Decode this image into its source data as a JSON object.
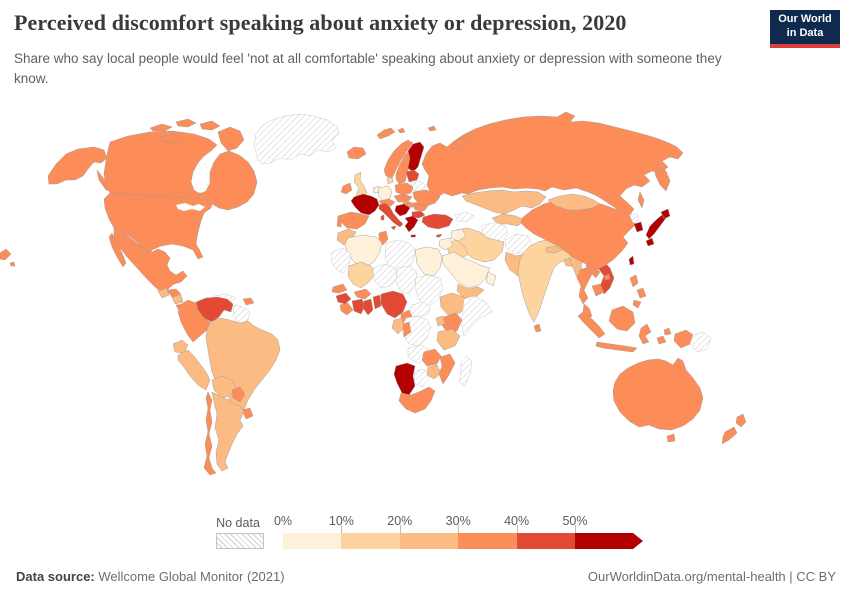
{
  "header": {
    "title": "Perceived discomfort speaking about anxiety or depression, 2020",
    "subtitle": "Share who say local people would feel 'not at all comfortable' speaking about anxiety or depression with someone they know.",
    "logo_line1": "Our World",
    "logo_line2": "in Data",
    "logo_colors": {
      "background": "#0e2a4e",
      "underline": "#dc3e3e"
    }
  },
  "legend": {
    "no_data_label": "No data",
    "ticks": [
      "0%",
      "10%",
      "20%",
      "30%",
      "40%",
      "50%"
    ],
    "bin_order": [
      "0-10%",
      "10-20%",
      "20-30%",
      "30-40%",
      "40-50%",
      "50%+"
    ],
    "bin_colors": {
      "0-10%": "#fef0d9",
      "10-20%": "#fdd49e",
      "20-30%": "#fdbb84",
      "30-40%": "#fc8d59",
      "40-50%": "#e34a33",
      "50%+": "#b30000",
      "no-data": "hatch"
    }
  },
  "footer": {
    "source_label": "Data source:",
    "source_value": "Wellcome Global Monitor (2021)",
    "attribution": "OurWorldinData.org/mental-health | CC BY"
  },
  "chart_data": {
    "type": "heatmap",
    "subtype": "choropleth-world-map",
    "title": "Perceived discomfort speaking about anxiety or depression, 2020",
    "unit": "% answering 'not at all comfortable'",
    "legend_bins": [
      "0-10%",
      "10-20%",
      "20-30%",
      "30-40%",
      "40-50%",
      "50%+",
      "no-data"
    ],
    "regions": [
      {
        "id": "united-states",
        "name": "United States",
        "bin": "30-40%"
      },
      {
        "id": "canada",
        "name": "Canada",
        "bin": "30-40%"
      },
      {
        "id": "greenland",
        "name": "Greenland",
        "bin": "no-data"
      },
      {
        "id": "mexico",
        "name": "Mexico",
        "bin": "30-40%"
      },
      {
        "id": "guatemala",
        "name": "Guatemala",
        "bin": "20-30%"
      },
      {
        "id": "honduras",
        "name": "Honduras",
        "bin": "30-40%"
      },
      {
        "id": "nicaragua",
        "name": "Nicaragua",
        "bin": "20-30%"
      },
      {
        "id": "costa-rica-panama",
        "name": "Costa Rica / Panama",
        "bin": "30-40%"
      },
      {
        "id": "cuba",
        "name": "Cuba",
        "bin": "no-data"
      },
      {
        "id": "dominican-republic",
        "name": "Dominican Republic",
        "bin": "30-40%"
      },
      {
        "id": "venezuela",
        "name": "Venezuela",
        "bin": "40-50%"
      },
      {
        "id": "colombia",
        "name": "Colombia",
        "bin": "30-40%"
      },
      {
        "id": "guyana-suriname",
        "name": "Guyana / Suriname",
        "bin": "no-data"
      },
      {
        "id": "ecuador",
        "name": "Ecuador",
        "bin": "20-30%"
      },
      {
        "id": "peru",
        "name": "Peru",
        "bin": "20-30%"
      },
      {
        "id": "brazil",
        "name": "Brazil",
        "bin": "20-30%"
      },
      {
        "id": "bolivia",
        "name": "Bolivia",
        "bin": "20-30%"
      },
      {
        "id": "paraguay",
        "name": "Paraguay",
        "bin": "30-40%"
      },
      {
        "id": "uruguay",
        "name": "Uruguay",
        "bin": "30-40%"
      },
      {
        "id": "argentina",
        "name": "Argentina",
        "bin": "20-30%"
      },
      {
        "id": "chile",
        "name": "Chile",
        "bin": "30-40%"
      },
      {
        "id": "iceland",
        "name": "Iceland",
        "bin": "30-40%"
      },
      {
        "id": "ireland",
        "name": "Ireland",
        "bin": "30-40%"
      },
      {
        "id": "united-kingdom",
        "name": "United Kingdom",
        "bin": "10-20%"
      },
      {
        "id": "portugal",
        "name": "Portugal",
        "bin": "30-40%"
      },
      {
        "id": "spain",
        "name": "Spain",
        "bin": "30-40%"
      },
      {
        "id": "france",
        "name": "France",
        "bin": "50%+"
      },
      {
        "id": "belgium-netherlands",
        "name": "Belgium / Netherlands",
        "bin": "0-10%"
      },
      {
        "id": "germany",
        "name": "Germany",
        "bin": "0-10%"
      },
      {
        "id": "denmark",
        "name": "Denmark",
        "bin": "10-20%"
      },
      {
        "id": "norway",
        "name": "Norway",
        "bin": "30-40%"
      },
      {
        "id": "sweden",
        "name": "Sweden",
        "bin": "30-40%"
      },
      {
        "id": "finland",
        "name": "Finland",
        "bin": "50%+"
      },
      {
        "id": "baltic-states",
        "name": "Baltic states",
        "bin": "40-50%"
      },
      {
        "id": "belarus",
        "name": "Belarus",
        "bin": "no-data"
      },
      {
        "id": "poland",
        "name": "Poland",
        "bin": "30-40%"
      },
      {
        "id": "czechia-slovakia",
        "name": "Czechia / Slovakia",
        "bin": "30-40%"
      },
      {
        "id": "switzerland-austria",
        "name": "Switzerland / Austria",
        "bin": "30-40%"
      },
      {
        "id": "hungary",
        "name": "Hungary",
        "bin": "30-40%"
      },
      {
        "id": "italy",
        "name": "Italy",
        "bin": "40-50%"
      },
      {
        "id": "balkans",
        "name": "Croatia / Bosnia / Serbia",
        "bin": "50%+"
      },
      {
        "id": "romania",
        "name": "Romania",
        "bin": "30-40%"
      },
      {
        "id": "bulgaria",
        "name": "Bulgaria",
        "bin": "40-50%"
      },
      {
        "id": "greece",
        "name": "Greece",
        "bin": "50%+"
      },
      {
        "id": "ukraine",
        "name": "Ukraine",
        "bin": "30-40%"
      },
      {
        "id": "turkey",
        "name": "Turkey",
        "bin": "40-50%"
      },
      {
        "id": "cyprus",
        "name": "Cyprus",
        "bin": "40-50%"
      },
      {
        "id": "caucasus",
        "name": "Georgia / Armenia / Azerbaijan",
        "bin": "no-data"
      },
      {
        "id": "russia",
        "name": "Russia",
        "bin": "30-40%"
      },
      {
        "id": "kazakhstan",
        "name": "Kazakhstan",
        "bin": "20-30%"
      },
      {
        "id": "uzbekistan-kyrgyzstan",
        "name": "Uzbekistan / Kyrgyzstan",
        "bin": "20-30%"
      },
      {
        "id": "turkmenistan",
        "name": "Turkmenistan",
        "bin": "no-data"
      },
      {
        "id": "afghanistan",
        "name": "Afghanistan",
        "bin": "no-data"
      },
      {
        "id": "pakistan",
        "name": "Pakistan",
        "bin": "20-30%"
      },
      {
        "id": "india",
        "name": "India",
        "bin": "10-20%"
      },
      {
        "id": "nepal",
        "name": "Nepal",
        "bin": "20-30%"
      },
      {
        "id": "bangladesh",
        "name": "Bangladesh",
        "bin": "20-30%"
      },
      {
        "id": "sri-lanka",
        "name": "Sri Lanka",
        "bin": "30-40%"
      },
      {
        "id": "myanmar",
        "name": "Myanmar",
        "bin": "20-30%"
      },
      {
        "id": "thailand",
        "name": "Thailand",
        "bin": "30-40%"
      },
      {
        "id": "laos",
        "name": "Laos",
        "bin": "30-40%"
      },
      {
        "id": "vietnam",
        "name": "Vietnam",
        "bin": "40-50%"
      },
      {
        "id": "cambodia",
        "name": "Cambodia",
        "bin": "30-40%"
      },
      {
        "id": "malaysia",
        "name": "Malaysia",
        "bin": "30-40%"
      },
      {
        "id": "indonesia",
        "name": "Indonesia",
        "bin": "30-40%"
      },
      {
        "id": "papua-new-guinea",
        "name": "Papua New Guinea",
        "bin": "no-data"
      },
      {
        "id": "philippines",
        "name": "Philippines",
        "bin": "30-40%"
      },
      {
        "id": "china",
        "name": "China",
        "bin": "30-40%"
      },
      {
        "id": "mongolia",
        "name": "Mongolia",
        "bin": "20-30%"
      },
      {
        "id": "north-korea",
        "name": "North Korea",
        "bin": "no-data"
      },
      {
        "id": "south-korea",
        "name": "South Korea",
        "bin": "50%+"
      },
      {
        "id": "japan",
        "name": "Japan",
        "bin": "50%+"
      },
      {
        "id": "taiwan",
        "name": "Taiwan",
        "bin": "50%+"
      },
      {
        "id": "iran",
        "name": "Iran",
        "bin": "10-20%"
      },
      {
        "id": "iraq",
        "name": "Iraq",
        "bin": "10-20%"
      },
      {
        "id": "syria",
        "name": "Syria",
        "bin": "0-10%"
      },
      {
        "id": "israel-jordan",
        "name": "Israel / Jordan",
        "bin": "0-10%"
      },
      {
        "id": "saudi-arabia",
        "name": "Saudi Arabia",
        "bin": "0-10%"
      },
      {
        "id": "yemen",
        "name": "Yemen",
        "bin": "20-30%"
      },
      {
        "id": "oman",
        "name": "Oman",
        "bin": "0-10%"
      },
      {
        "id": "morocco",
        "name": "Morocco",
        "bin": "20-30%"
      },
      {
        "id": "algeria",
        "name": "Algeria",
        "bin": "0-10%"
      },
      {
        "id": "tunisia",
        "name": "Tunisia",
        "bin": "30-40%"
      },
      {
        "id": "libya",
        "name": "Libya",
        "bin": "no-data"
      },
      {
        "id": "egypt",
        "name": "Egypt",
        "bin": "0-10%"
      },
      {
        "id": "mauritania-western-sahara",
        "name": "Mauritania / W. Sahara",
        "bin": "no-data"
      },
      {
        "id": "mali",
        "name": "Mali",
        "bin": "10-20%"
      },
      {
        "id": "niger",
        "name": "Niger",
        "bin": "no-data"
      },
      {
        "id": "chad",
        "name": "Chad",
        "bin": "no-data"
      },
      {
        "id": "sudan",
        "name": "Sudan",
        "bin": "no-data"
      },
      {
        "id": "senegal",
        "name": "Senegal",
        "bin": "30-40%"
      },
      {
        "id": "guinea",
        "name": "Guinea",
        "bin": "40-50%"
      },
      {
        "id": "sierra-leone-liberia",
        "name": "Sierra Leone / Liberia",
        "bin": "30-40%"
      },
      {
        "id": "cote-divoire",
        "name": "Cote d'Ivoire",
        "bin": "40-50%"
      },
      {
        "id": "burkina-faso",
        "name": "Burkina Faso",
        "bin": "30-40%"
      },
      {
        "id": "ghana",
        "name": "Ghana",
        "bin": "40-50%"
      },
      {
        "id": "togo-benin",
        "name": "Togo / Benin",
        "bin": "40-50%"
      },
      {
        "id": "nigeria",
        "name": "Nigeria",
        "bin": "40-50%"
      },
      {
        "id": "cameroon",
        "name": "Cameroon",
        "bin": "30-40%"
      },
      {
        "id": "central-african-republic",
        "name": "Central African Republic",
        "bin": "no-data"
      },
      {
        "id": "ethiopia",
        "name": "Ethiopia",
        "bin": "20-30%"
      },
      {
        "id": "somalia",
        "name": "Somalia",
        "bin": "no-data"
      },
      {
        "id": "kenya",
        "name": "Kenya",
        "bin": "30-40%"
      },
      {
        "id": "uganda",
        "name": "Uganda",
        "bin": "20-30%"
      },
      {
        "id": "tanzania",
        "name": "Tanzania",
        "bin": "20-30%"
      },
      {
        "id": "dr-congo",
        "name": "Democratic Republic of Congo",
        "bin": "no-data"
      },
      {
        "id": "gabon",
        "name": "Gabon",
        "bin": "20-30%"
      },
      {
        "id": "congo",
        "name": "Congo",
        "bin": "30-40%"
      },
      {
        "id": "angola",
        "name": "Angola",
        "bin": "no-data"
      },
      {
        "id": "zambia",
        "name": "Zambia",
        "bin": "30-40%"
      },
      {
        "id": "zimbabwe",
        "name": "Zimbabwe",
        "bin": "20-30%"
      },
      {
        "id": "mozambique",
        "name": "Mozambique",
        "bin": "30-40%"
      },
      {
        "id": "botswana",
        "name": "Botswana",
        "bin": "no-data"
      },
      {
        "id": "namibia",
        "name": "Namibia",
        "bin": "50%+"
      },
      {
        "id": "south-africa",
        "name": "South Africa",
        "bin": "30-40%"
      },
      {
        "id": "madagascar",
        "name": "Madagascar",
        "bin": "no-data"
      },
      {
        "id": "australia",
        "name": "Australia",
        "bin": "30-40%"
      },
      {
        "id": "new-zealand",
        "name": "New Zealand",
        "bin": "30-40%"
      }
    ]
  }
}
